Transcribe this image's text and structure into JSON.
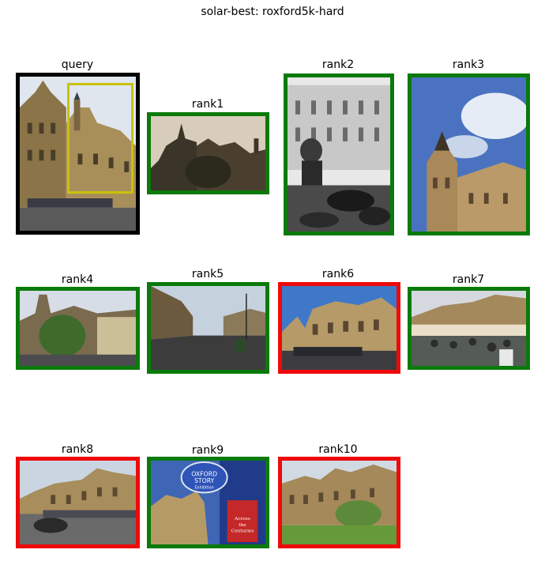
{
  "figure": {
    "title": "solar-best: roxford5k-hard"
  },
  "colors": {
    "query": "#000000",
    "correct": "#0a7a0a",
    "wrong": "#ee0a0a",
    "roi": "#c9c20b"
  },
  "query": {
    "label": "query"
  },
  "ranks": [
    {
      "label": "rank1",
      "result": "correct"
    },
    {
      "label": "rank2",
      "result": "correct"
    },
    {
      "label": "rank3",
      "result": "correct"
    },
    {
      "label": "rank4",
      "result": "correct"
    },
    {
      "label": "rank5",
      "result": "correct"
    },
    {
      "label": "rank6",
      "result": "wrong"
    },
    {
      "label": "rank7",
      "result": "correct"
    },
    {
      "label": "rank8",
      "result": "wrong"
    },
    {
      "label": "rank9",
      "result": "correct"
    },
    {
      "label": "rank10",
      "result": "wrong"
    }
  ],
  "sign_text": {
    "line1": "OXFORD",
    "line2": "STORY",
    "line3": "Exhibition",
    "card1": "Across",
    "card2": "the",
    "card3": "Centuries"
  }
}
